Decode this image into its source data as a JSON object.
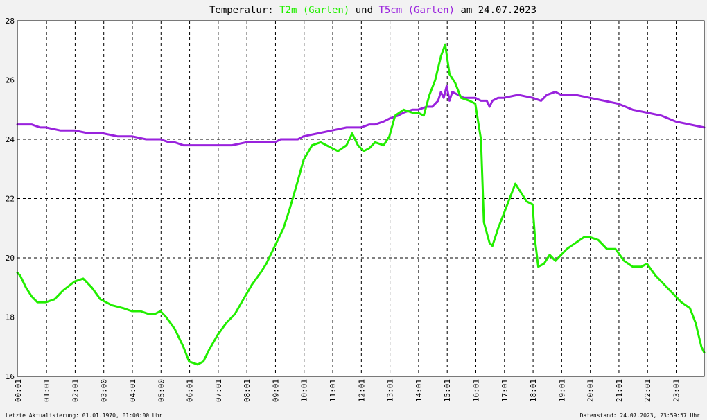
{
  "title": {
    "prefix": "Temperatur: ",
    "series1_label": "T2m (Garten)",
    "connector": " und ",
    "series2_label": "T5cm (Garten)",
    "suffix": " am 24.07.2023"
  },
  "footer": {
    "left": "Letzte Aktualisierung: 01.01.1970, 01:00:00 Uhr",
    "right": "Datenstand: 24.07.2023, 23:59:57 Uhr"
  },
  "colors": {
    "background": "#f2f2f2",
    "plot_background": "#ffffff",
    "series1": "#22ee00",
    "series2": "#9922dd",
    "grid": "#000000"
  },
  "chart_data": {
    "type": "line",
    "x_unit": "hour of day",
    "xlim": [
      0,
      24
    ],
    "ylim": [
      16,
      28
    ],
    "y_ticks": [
      "16",
      "18",
      "20",
      "22",
      "24",
      "26",
      "28"
    ],
    "x_ticks": [
      "00:01",
      "01:01",
      "02:01",
      "03:00",
      "04:01",
      "05:00",
      "06:01",
      "07:01",
      "08:01",
      "09:01",
      "10:01",
      "11:01",
      "12:01",
      "13:01",
      "14:01",
      "15:01",
      "16:01",
      "17:01",
      "18:01",
      "19:01",
      "20:01",
      "21:01",
      "22:01",
      "23:01"
    ],
    "grid": true,
    "series": [
      {
        "name": "T2m (Garten)",
        "color": "#22ee00",
        "x": [
          0,
          0.1,
          0.3,
          0.5,
          0.7,
          1.0,
          1.3,
          1.6,
          2.0,
          2.3,
          2.6,
          2.9,
          3.3,
          3.7,
          4.0,
          4.3,
          4.6,
          4.8,
          5.0,
          5.2,
          5.5,
          5.8,
          6.0,
          6.3,
          6.5,
          6.7,
          7.0,
          7.3,
          7.6,
          7.9,
          8.2,
          8.5,
          8.7,
          9.0,
          9.3,
          9.5,
          9.8,
          10.0,
          10.3,
          10.6,
          10.8,
          11.0,
          11.2,
          11.5,
          11.7,
          11.9,
          12.1,
          12.3,
          12.5,
          12.8,
          13.0,
          13.2,
          13.5,
          13.8,
          14.0,
          14.2,
          14.4,
          14.6,
          14.8,
          14.95,
          15.1,
          15.3,
          15.5,
          15.8,
          16.0,
          16.2,
          16.3,
          16.5,
          16.6,
          16.8,
          17.0,
          17.2,
          17.4,
          17.6,
          17.8,
          18.0,
          18.1,
          18.2,
          18.4,
          18.6,
          18.8,
          19.0,
          19.2,
          19.5,
          19.8,
          20.0,
          20.3,
          20.6,
          20.9,
          21.2,
          21.5,
          21.8,
          22.0,
          22.3,
          22.6,
          22.9,
          23.2,
          23.5,
          23.7,
          23.9,
          24.0
        ],
        "values": [
          19.5,
          19.4,
          19.0,
          18.7,
          18.5,
          18.5,
          18.6,
          18.9,
          19.2,
          19.3,
          19.0,
          18.6,
          18.4,
          18.3,
          18.2,
          18.2,
          18.1,
          18.1,
          18.2,
          18.0,
          17.6,
          17.0,
          16.5,
          16.4,
          16.5,
          16.9,
          17.4,
          17.8,
          18.1,
          18.6,
          19.1,
          19.5,
          19.8,
          20.4,
          21.0,
          21.6,
          22.6,
          23.3,
          23.8,
          23.9,
          23.8,
          23.7,
          23.6,
          23.8,
          24.2,
          23.8,
          23.6,
          23.7,
          23.9,
          23.8,
          24.1,
          24.8,
          25.0,
          24.9,
          24.9,
          24.8,
          25.5,
          26.0,
          26.8,
          27.2,
          26.2,
          25.9,
          25.4,
          25.3,
          25.2,
          24.0,
          21.2,
          20.5,
          20.4,
          21.0,
          21.5,
          22.0,
          22.5,
          22.2,
          21.9,
          21.8,
          20.5,
          19.7,
          19.8,
          20.1,
          19.9,
          20.1,
          20.3,
          20.5,
          20.7,
          20.7,
          20.6,
          20.3,
          20.3,
          19.9,
          19.7,
          19.7,
          19.8,
          19.4,
          19.1,
          18.8,
          18.5,
          18.3,
          17.8,
          17.0,
          16.8
        ]
      },
      {
        "name": "T5cm (Garten)",
        "color": "#9922dd",
        "x": [
          0,
          0.3,
          0.5,
          0.8,
          1.0,
          1.5,
          2.0,
          2.5,
          3.0,
          3.5,
          4.0,
          4.5,
          5.0,
          5.3,
          5.5,
          5.8,
          6.0,
          6.5,
          7.0,
          7.5,
          8.0,
          8.5,
          9.0,
          9.2,
          9.5,
          9.8,
          10.0,
          10.5,
          11.0,
          11.5,
          12.0,
          12.3,
          12.5,
          12.8,
          13.0,
          13.3,
          13.5,
          13.8,
          14.0,
          14.3,
          14.5,
          14.7,
          14.8,
          14.9,
          15.0,
          15.1,
          15.2,
          15.4,
          15.6,
          15.8,
          16.0,
          16.2,
          16.4,
          16.5,
          16.6,
          16.8,
          17.0,
          17.5,
          18.0,
          18.3,
          18.5,
          18.8,
          19.0,
          19.3,
          19.5,
          20.0,
          20.5,
          21.0,
          21.5,
          22.0,
          22.5,
          23.0,
          23.5,
          24.0
        ],
        "values": [
          24.5,
          24.5,
          24.5,
          24.4,
          24.4,
          24.3,
          24.3,
          24.2,
          24.2,
          24.1,
          24.1,
          24.0,
          24.0,
          23.9,
          23.9,
          23.8,
          23.8,
          23.8,
          23.8,
          23.8,
          23.9,
          23.9,
          23.9,
          24.0,
          24.0,
          24.0,
          24.1,
          24.2,
          24.3,
          24.4,
          24.4,
          24.5,
          24.5,
          24.6,
          24.7,
          24.8,
          24.9,
          25.0,
          25.0,
          25.1,
          25.1,
          25.3,
          25.6,
          25.4,
          25.8,
          25.3,
          25.6,
          25.5,
          25.4,
          25.4,
          25.4,
          25.3,
          25.3,
          25.1,
          25.3,
          25.4,
          25.4,
          25.5,
          25.4,
          25.3,
          25.5,
          25.6,
          25.5,
          25.5,
          25.5,
          25.4,
          25.3,
          25.2,
          25.0,
          24.9,
          24.8,
          24.6,
          24.5,
          24.4
        ]
      }
    ]
  }
}
